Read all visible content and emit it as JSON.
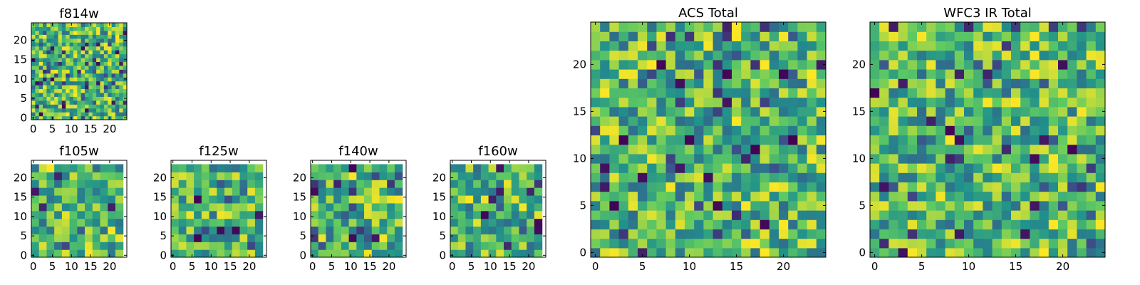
{
  "figure_title": "",
  "chart_data": [
    {
      "type": "heatmap",
      "title": "f814w",
      "grid_size": 25,
      "cell_size": 1,
      "xlim": [
        0,
        24
      ],
      "ylim": [
        0,
        24
      ],
      "xticks": [
        0,
        5,
        10,
        15,
        20
      ],
      "yticks": [
        0,
        5,
        10,
        15,
        20
      ],
      "colormap": [
        "#440154",
        "#3b528b",
        "#21918c",
        "#5ec962",
        "#fde725"
      ],
      "seed": 814
    },
    {
      "type": "heatmap",
      "title": "f105w",
      "grid_size": 12,
      "cell_size": 2,
      "xlim": [
        0,
        24
      ],
      "ylim": [
        0,
        24
      ],
      "xticks": [
        0,
        5,
        10,
        15,
        20
      ],
      "yticks": [
        0,
        5,
        10,
        15,
        20
      ],
      "colormap": [
        "#440154",
        "#3b528b",
        "#21918c",
        "#5ec962",
        "#fde725"
      ],
      "seed": 105
    },
    {
      "type": "heatmap",
      "title": "f125w",
      "grid_size": 12,
      "cell_size": 2,
      "xlim": [
        0,
        24
      ],
      "ylim": [
        0,
        24
      ],
      "xticks": [
        0,
        5,
        10,
        15,
        20
      ],
      "yticks": [
        0,
        5,
        10,
        15,
        20
      ],
      "colormap": [
        "#440154",
        "#3b528b",
        "#21918c",
        "#5ec962",
        "#fde725"
      ],
      "seed": 125
    },
    {
      "type": "heatmap",
      "title": "f140w",
      "grid_size": 12,
      "cell_size": 2,
      "xlim": [
        0,
        24
      ],
      "ylim": [
        0,
        24
      ],
      "xticks": [
        0,
        5,
        10,
        15,
        20
      ],
      "yticks": [
        0,
        5,
        10,
        15,
        20
      ],
      "colormap": [
        "#440154",
        "#3b528b",
        "#21918c",
        "#5ec962",
        "#fde725"
      ],
      "seed": 140
    },
    {
      "type": "heatmap",
      "title": "f160w",
      "grid_size": 12,
      "cell_size": 2,
      "xlim": [
        0,
        24
      ],
      "ylim": [
        0,
        24
      ],
      "xticks": [
        0,
        5,
        10,
        15,
        20
      ],
      "yticks": [
        0,
        5,
        10,
        15,
        20
      ],
      "colormap": [
        "#440154",
        "#3b528b",
        "#21918c",
        "#5ec962",
        "#fde725"
      ],
      "seed": 160
    },
    {
      "type": "heatmap",
      "title": "ACS Total",
      "grid_size": 25,
      "cell_size": 1,
      "xlim": [
        0,
        24
      ],
      "ylim": [
        0,
        24
      ],
      "xticks": [
        0,
        5,
        10,
        15,
        20
      ],
      "yticks": [
        0,
        5,
        10,
        15,
        20
      ],
      "colormap": [
        "#440154",
        "#3b528b",
        "#21918c",
        "#5ec962",
        "#fde725"
      ],
      "seed": 2001
    },
    {
      "type": "heatmap",
      "title": "WFC3 IR Total",
      "grid_size": 25,
      "cell_size": 1,
      "xlim": [
        0,
        24
      ],
      "ylim": [
        0,
        24
      ],
      "xticks": [
        0,
        5,
        10,
        15,
        20
      ],
      "yticks": [
        0,
        5,
        10,
        15,
        20
      ],
      "colormap": [
        "#440154",
        "#3b528b",
        "#21918c",
        "#5ec962",
        "#fde725"
      ],
      "seed": 3001
    }
  ]
}
